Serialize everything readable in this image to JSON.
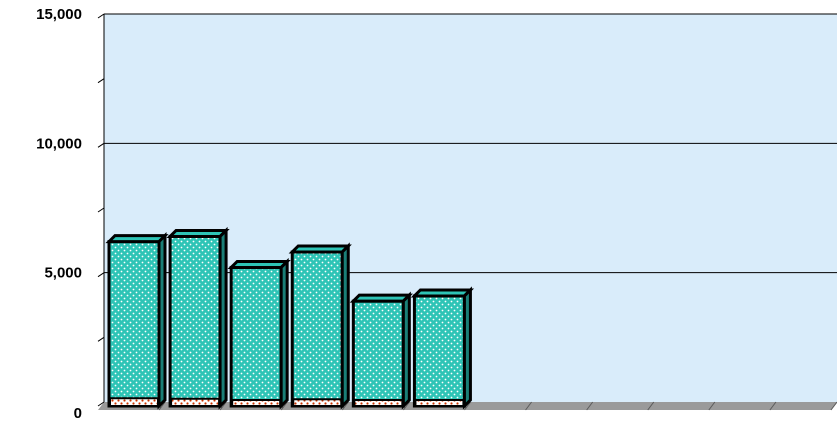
{
  "chart_data": {
    "type": "bar",
    "title": "",
    "xlabel": "",
    "ylabel": "",
    "categories": [
      "",
      "",
      "",
      "",
      "",
      "",
      "",
      "",
      "",
      "",
      "",
      ""
    ],
    "series": [
      {
        "values": [
          6200,
          6400,
          5200,
          5800,
          3900,
          4100,
          null,
          null,
          null,
          null,
          null,
          null
        ],
        "color": "#2ec4b6"
      },
      {
        "values": [
          300,
          280,
          220,
          260,
          150,
          200,
          null,
          null,
          null,
          null,
          null,
          null
        ],
        "color": "#cc3300"
      }
    ],
    "ylim": [
      0,
      15000
    ],
    "yticks": [
      {
        "value": 0,
        "label": "0"
      },
      {
        "value": 5000,
        "label": "5,000"
      },
      {
        "value": 10000,
        "label": "10,000"
      },
      {
        "value": 15000,
        "label": "15,000"
      }
    ],
    "grid": true,
    "style": {
      "plot_background": "#d9ecfa",
      "floor_color": "#9a9a9a",
      "gridline_color": "#000000",
      "bar_outline": "#000000",
      "bar_dots": "#ffffff"
    }
  }
}
